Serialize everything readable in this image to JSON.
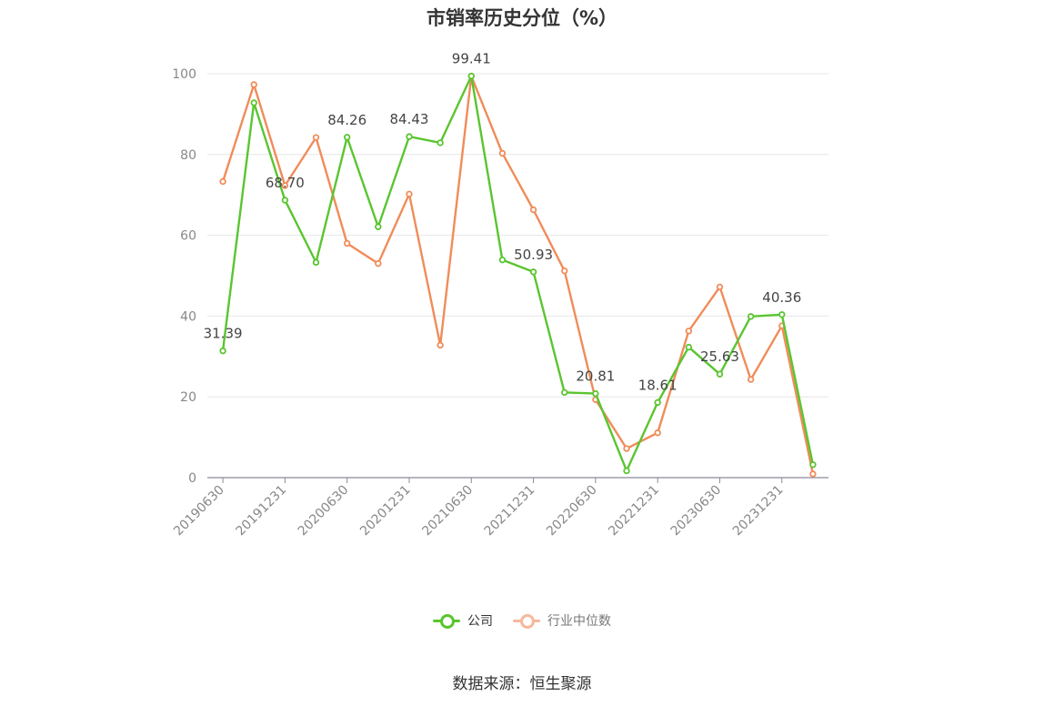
{
  "chart_data": {
    "type": "line",
    "title": "市销率历史分位（%）",
    "x_tick_labels": [
      "20190630",
      "20191231",
      "20200630",
      "20201231",
      "20210630",
      "20211231",
      "20220630",
      "20221231",
      "20230630",
      "20231231"
    ],
    "ylim": [
      0,
      100
    ],
    "y_ticks": [
      0,
      20,
      40,
      60,
      80,
      100
    ],
    "grid": true,
    "legend_position": "bottom",
    "series": [
      {
        "name": "公司",
        "color": "#5ac530",
        "values": [
          31.39,
          92.8,
          68.7,
          53.3,
          84.26,
          62.1,
          84.43,
          82.9,
          99.41,
          53.9,
          50.93,
          21.1,
          20.81,
          1.7,
          18.61,
          32.3,
          25.63,
          39.9,
          40.36,
          3.2
        ],
        "labels": [
          "31.39",
          "",
          "68.70",
          "",
          "84.26",
          "",
          "84.43",
          "",
          "99.41",
          "",
          "50.93",
          "",
          "20.81",
          "",
          "18.61",
          "",
          "25.63",
          "",
          "40.36",
          ""
        ]
      },
      {
        "name": "行业中位数",
        "color": "#f08c5a",
        "values": [
          73.3,
          97.3,
          72.3,
          84.2,
          58.0,
          53.0,
          70.2,
          32.8,
          99.4,
          80.3,
          66.3,
          51.2,
          19.3,
          7.2,
          11.1,
          36.3,
          47.2,
          24.3,
          37.6,
          0.9
        ]
      }
    ]
  },
  "source": "数据来源：恒生聚源"
}
